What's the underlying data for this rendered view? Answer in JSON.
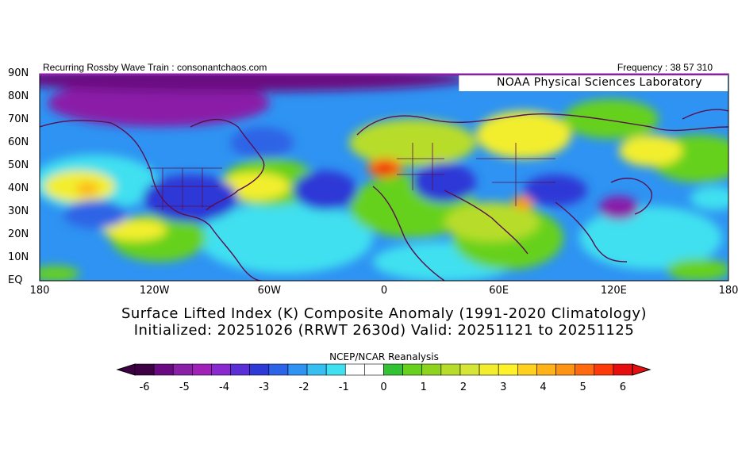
{
  "header": {
    "left": "Recurring Rossby Wave Train : consonantchaos.com",
    "right": "Frequency : 38 57 310"
  },
  "lab_label": "NOAA Physical Sciences Laboratory",
  "title_line1": "Surface Lifted Index (K) Composite Anomaly (1991-2020 Climatology)",
  "title_line2": "Initialized: 20251026 (RRWT 2630d) Valid: 20251121 to 20251125",
  "map": {
    "lat_labels": [
      "90N",
      "80N",
      "70N",
      "60N",
      "50N",
      "40N",
      "30N",
      "20N",
      "10N",
      "EQ"
    ],
    "lon_labels": [
      "180",
      "120W",
      "60W",
      "0",
      "60E",
      "120E",
      "180"
    ],
    "lat_range": [
      0,
      90
    ],
    "lon_range": [
      -180,
      180
    ]
  },
  "colorbar": {
    "title": "NCEP/NCAR Reanalysis",
    "tick_labels": [
      "-6",
      "-5",
      "-4",
      "-3",
      "-2",
      "-1",
      "0",
      "1",
      "2",
      "3",
      "4",
      "5",
      "6"
    ],
    "colors": [
      "#3d0045",
      "#6a0a82",
      "#8a1fa8",
      "#a021b8",
      "#8a29cf",
      "#5a2fd6",
      "#2f39d6",
      "#2d63e6",
      "#2e93f2",
      "#38bff2",
      "#3fe0f0",
      "#ffffff",
      "#ffffff",
      "#33c233",
      "#66d11f",
      "#8ed41e",
      "#b7dd2a",
      "#d6e636",
      "#f2ee2e",
      "#fff12a",
      "#ffd11e",
      "#ffb318",
      "#ff9412",
      "#ff6a10",
      "#ff3a0a",
      "#e60f0f"
    ],
    "end_colors": {
      "low": "#3d0045",
      "high": "#e60f0f"
    }
  }
}
